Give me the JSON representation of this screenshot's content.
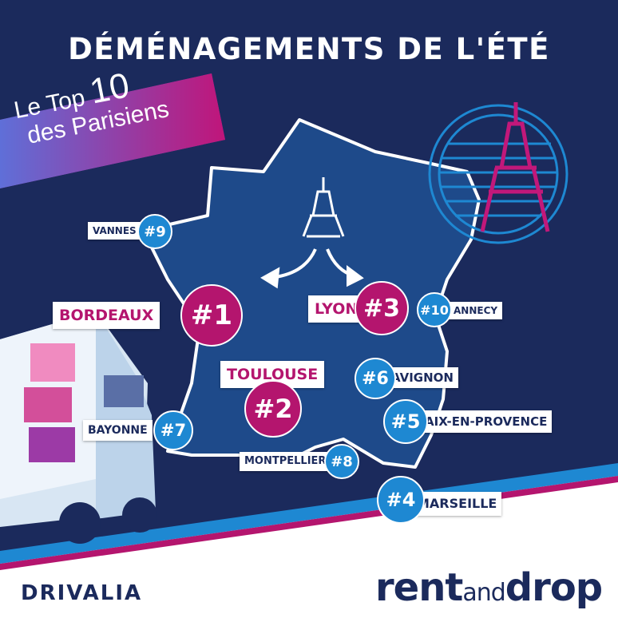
{
  "title": "DÉMÉNAGEMENTS DE L'ÉTÉ",
  "banner": {
    "line1_prefix": "Le Top ",
    "line1_number": "10",
    "line2": "des Parisiens"
  },
  "colors": {
    "background": "#1b2a5c",
    "magenta": "#b4156e",
    "blue": "#1e88d2",
    "map_fill": "#1e4a8a"
  },
  "icons": [
    "eiffel-tower-icon",
    "arrow-left-icon",
    "arrow-right-icon",
    "truck-illustration",
    "eiffel-badge-icon"
  ],
  "cities": [
    {
      "rank": "#1",
      "name": "BORDEAUX"
    },
    {
      "rank": "#2",
      "name": "TOULOUSE"
    },
    {
      "rank": "#3",
      "name": "LYON"
    },
    {
      "rank": "#4",
      "name": "MARSEILLE"
    },
    {
      "rank": "#5",
      "name": "AIX-EN-PROVENCE"
    },
    {
      "rank": "#6",
      "name": "AVIGNON"
    },
    {
      "rank": "#7",
      "name": "BAYONNE"
    },
    {
      "rank": "#8",
      "name": "MONTPELLIER"
    },
    {
      "rank": "#9",
      "name": "VANNES"
    },
    {
      "rank": "#10",
      "name": "ANNECY"
    }
  ],
  "footer": {
    "left_logo": "DRIVALIA",
    "right_logo_1": "rent",
    "right_logo_2": "and",
    "right_logo_3": "drop"
  }
}
